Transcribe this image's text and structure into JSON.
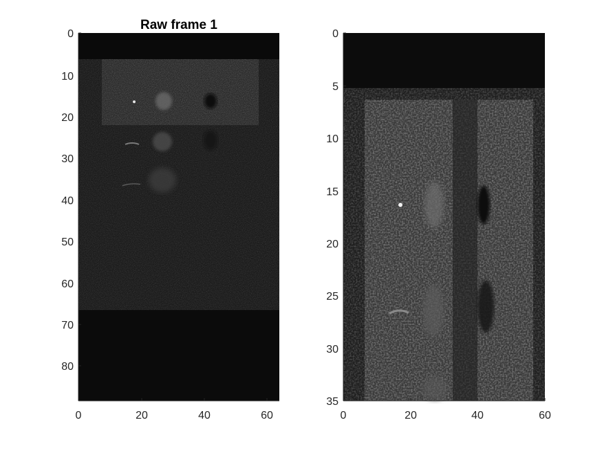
{
  "figure": {
    "left_panel": {
      "title": "Raw frame 1",
      "x_ticks": [
        "0",
        "20",
        "40",
        "60"
      ],
      "y_ticks": [
        "0",
        "10",
        "20",
        "30",
        "40",
        "50",
        "60",
        "70",
        "80"
      ],
      "x_range": [
        0,
        64
      ],
      "y_range": [
        0,
        89
      ],
      "colormap": "gray"
    },
    "right_panel": {
      "title": "",
      "x_ticks": [
        "0",
        "20",
        "40",
        "60"
      ],
      "y_ticks": [
        "0",
        "5",
        "10",
        "15",
        "20",
        "25",
        "30",
        "35"
      ],
      "x_range": [
        0,
        60
      ],
      "y_range": [
        0,
        35
      ],
      "colormap": "gray"
    }
  }
}
